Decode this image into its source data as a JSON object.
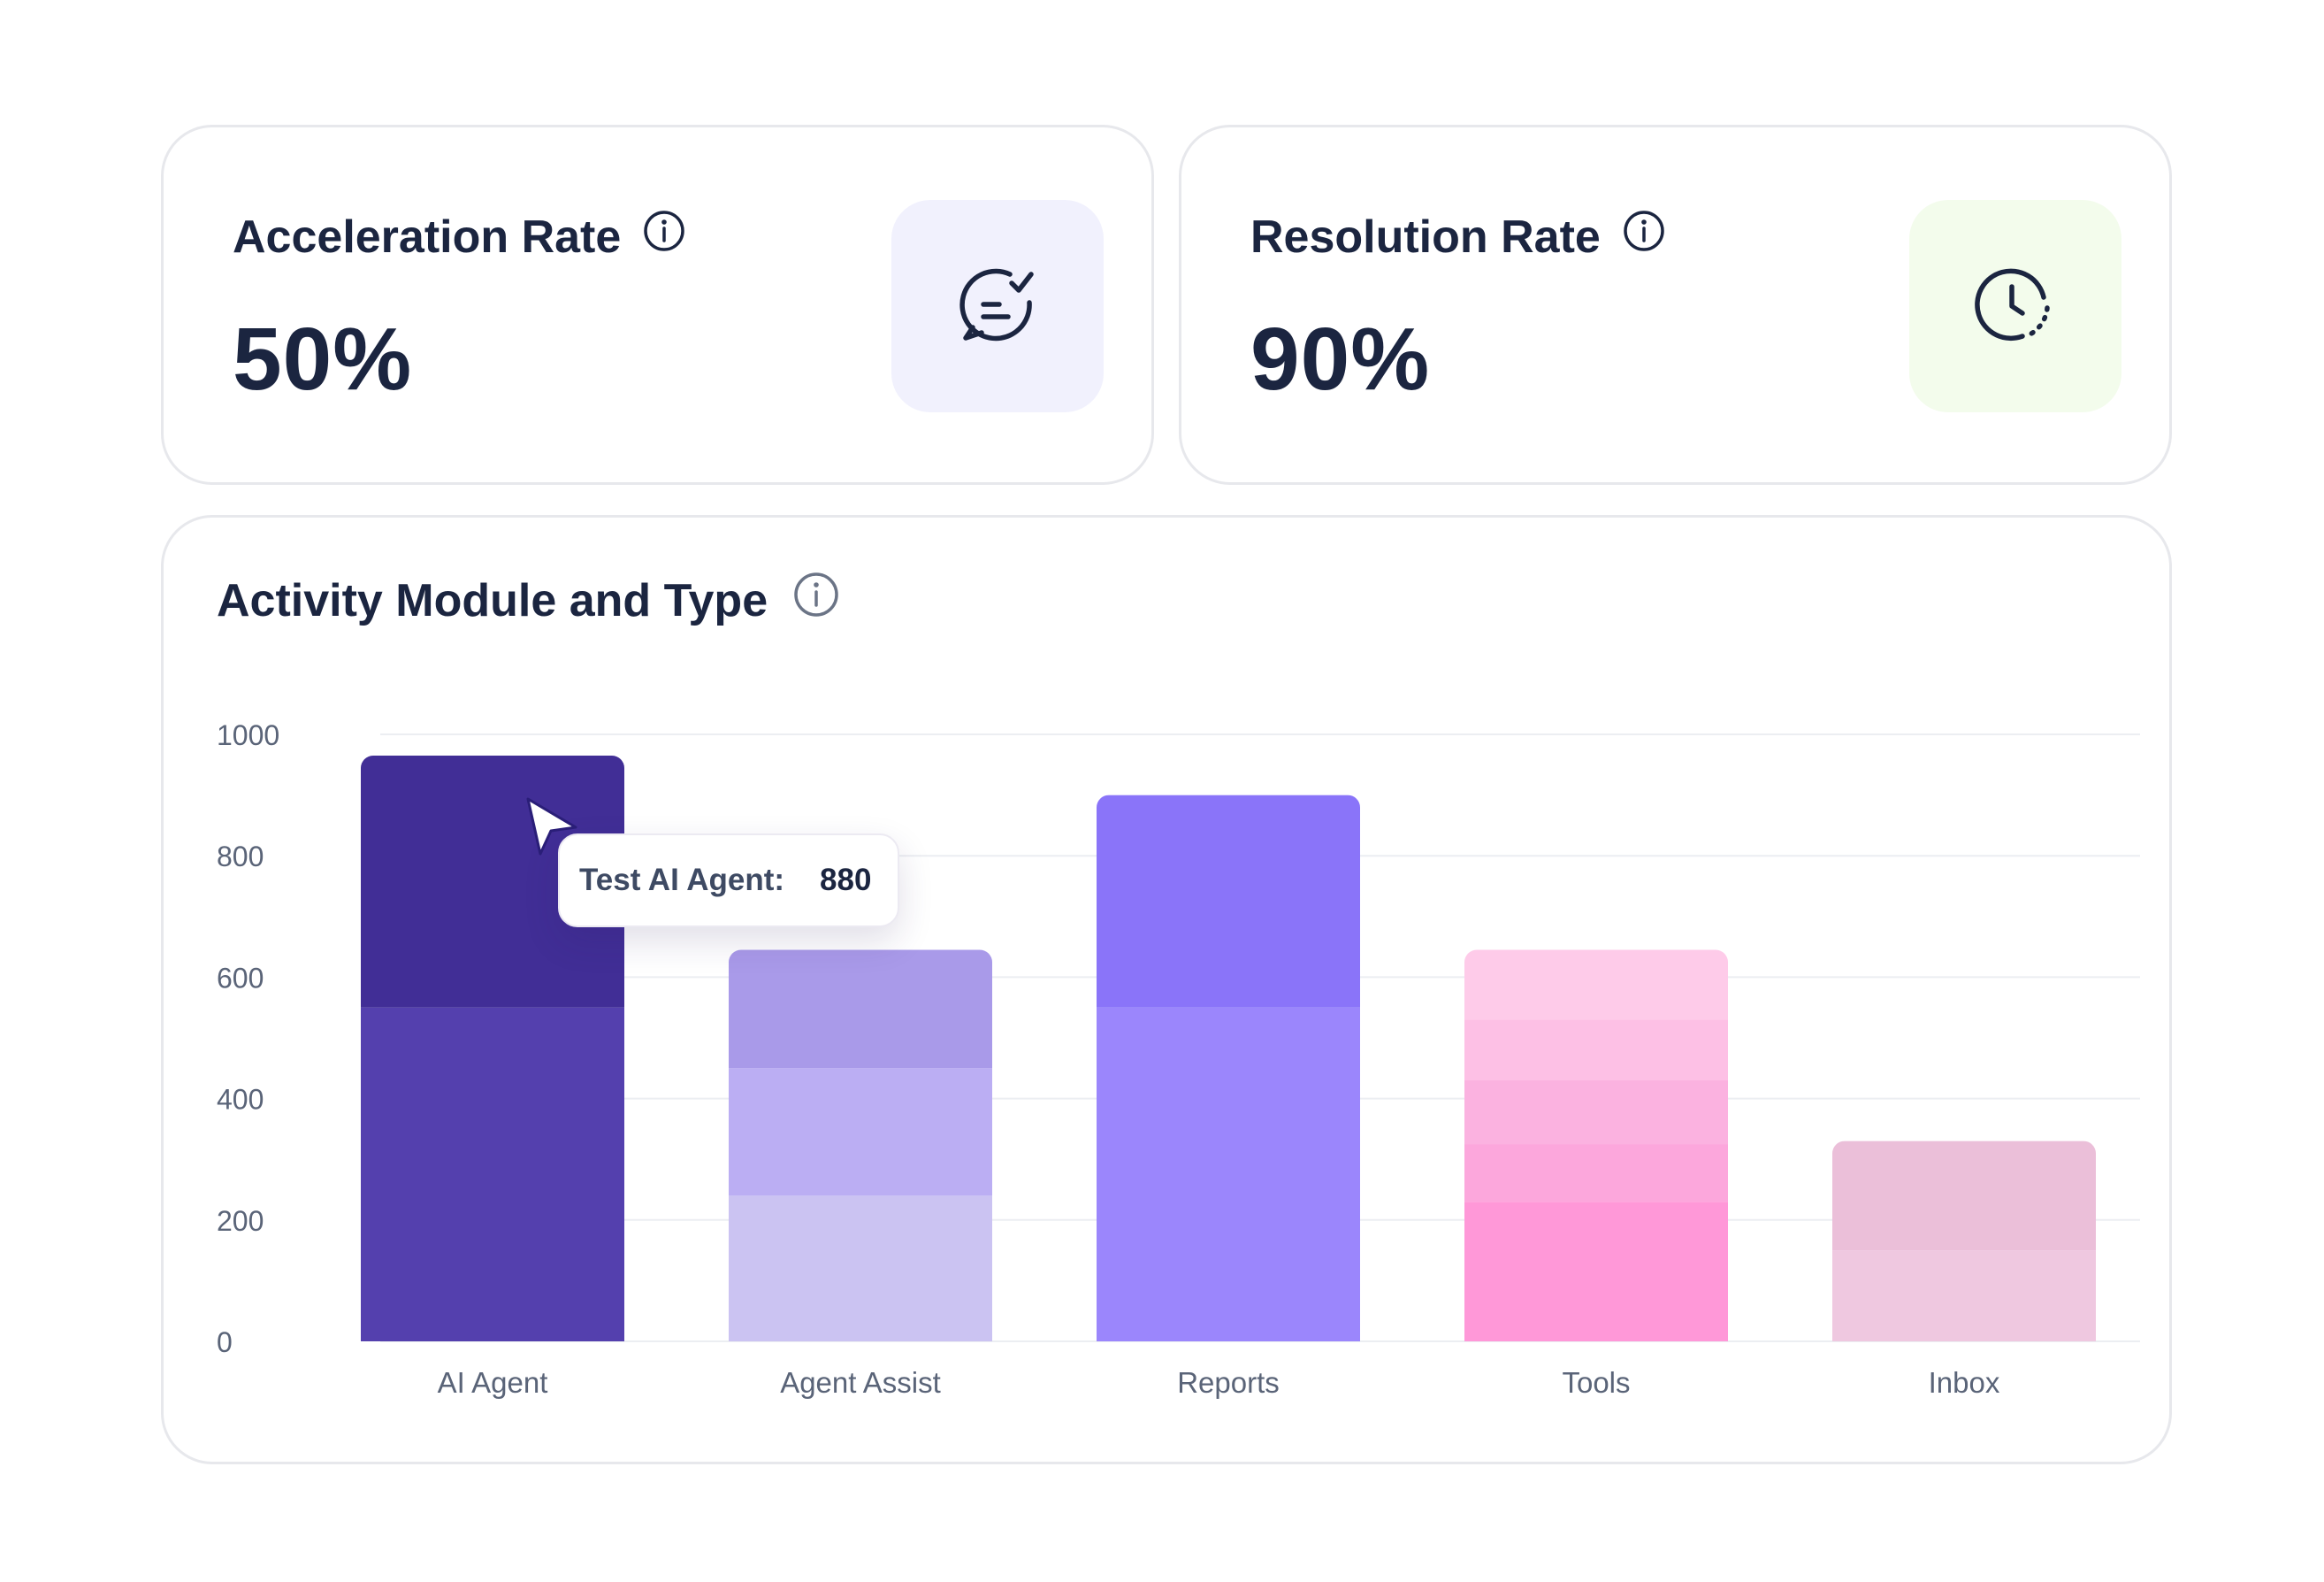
{
  "cards": {
    "acceleration": {
      "title": "Acceleration Rate",
      "value": "50%",
      "badge_color": "#f1f1fd",
      "icon": "chat-check-icon"
    },
    "resolution": {
      "title": "Resolution Rate",
      "value": "90%",
      "badge_color": "#f3fcec",
      "icon": "clock-icon"
    }
  },
  "tooltip": {
    "label": "Test AI Agent:",
    "value": "880"
  },
  "chart_data": {
    "type": "bar",
    "title": "Activity Module and Type",
    "stacked": true,
    "ylim": [
      0,
      1000
    ],
    "yticks": [
      "0",
      "200",
      "400",
      "600",
      "800",
      "1000"
    ],
    "grid": true,
    "categories": [
      "AI Agent",
      "Agent Assist",
      "Reports",
      "Tools",
      "Inbox"
    ],
    "stacks": [
      {
        "category": "AI Agent",
        "segments": [
          {
            "value": 550,
            "color": "#5440ae"
          },
          {
            "value": 415,
            "color": "#412e96"
          }
        ]
      },
      {
        "category": "Agent Assist",
        "segments": [
          {
            "value": 240,
            "color": "#cbc3f2"
          },
          {
            "value": 210,
            "color": "#bbaef3"
          },
          {
            "value": 195,
            "color": "#a99ae9"
          }
        ]
      },
      {
        "category": "Reports",
        "segments": [
          {
            "value": 550,
            "color": "#9b86fc"
          },
          {
            "value": 350,
            "color": "#8a74f9"
          }
        ]
      },
      {
        "category": "Tools",
        "segments": [
          {
            "value": 230,
            "color": "#ff98d8"
          },
          {
            "value": 95,
            "color": "#fca7dc"
          },
          {
            "value": 105,
            "color": "#fbb2e0"
          },
          {
            "value": 100,
            "color": "#fdc0e5"
          },
          {
            "value": 115,
            "color": "#fecbe9"
          }
        ]
      },
      {
        "category": "Inbox",
        "segments": [
          {
            "value": 150,
            "color": "#efc8e0"
          },
          {
            "value": 180,
            "color": "#ebbfd9"
          }
        ]
      }
    ]
  }
}
